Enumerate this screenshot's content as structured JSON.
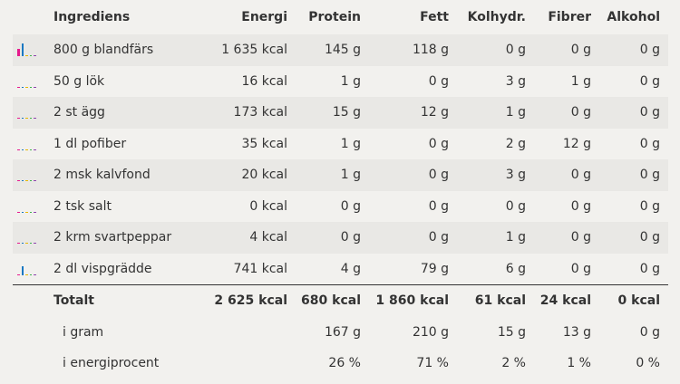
{
  "colors": {
    "protein": "#e61a8d",
    "fat": "#1a78c2",
    "carbs": "#e6b800",
    "fiber": "#3fb34f",
    "alcohol": "#8e44ad"
  },
  "header": {
    "ingredients": "Ingrediens",
    "energy": "Energi",
    "protein": "Protein",
    "fat": "Fett",
    "carbs": "Kolhydr.",
    "fiber": "Fibrer",
    "alcohol": "Alkohol"
  },
  "rows": [
    {
      "name": "800 g blandfärs",
      "energy": "1 635 kcal",
      "protein": "145 g",
      "fat": "118 g",
      "carbs": "0 g",
      "fiber": "0 g",
      "alcohol": "0 g",
      "bars": [
        0.55,
        1.0,
        0,
        0,
        0
      ]
    },
    {
      "name": "50 g lök",
      "energy": "16 kcal",
      "protein": "1 g",
      "fat": "0 g",
      "carbs": "3 g",
      "fiber": "1 g",
      "alcohol": "0 g",
      "bars": [
        0,
        0,
        0,
        0,
        0
      ]
    },
    {
      "name": "2 st ägg",
      "energy": "173 kcal",
      "protein": "15 g",
      "fat": "12 g",
      "carbs": "1 g",
      "fiber": "0 g",
      "alcohol": "0 g",
      "bars": [
        0,
        0,
        0,
        0,
        0
      ]
    },
    {
      "name": "1 dl pofiber",
      "energy": "35 kcal",
      "protein": "1 g",
      "fat": "0 g",
      "carbs": "2 g",
      "fiber": "12 g",
      "alcohol": "0 g",
      "bars": [
        0,
        0,
        0,
        0,
        0
      ]
    },
    {
      "name": "2 msk kalvfond",
      "energy": "20 kcal",
      "protein": "1 g",
      "fat": "0 g",
      "carbs": "3 g",
      "fiber": "0 g",
      "alcohol": "0 g",
      "bars": [
        0,
        0,
        0,
        0,
        0
      ]
    },
    {
      "name": "2 tsk salt",
      "energy": "0 kcal",
      "protein": "0 g",
      "fat": "0 g",
      "carbs": "0 g",
      "fiber": "0 g",
      "alcohol": "0 g",
      "bars": [
        0,
        0,
        0,
        0,
        0
      ]
    },
    {
      "name": "2 krm svartpeppar",
      "energy": "4 kcal",
      "protein": "0 g",
      "fat": "0 g",
      "carbs": "1 g",
      "fiber": "0 g",
      "alcohol": "0 g",
      "bars": [
        0,
        0,
        0,
        0,
        0
      ]
    },
    {
      "name": "2 dl vispgrädde",
      "energy": "741 kcal",
      "protein": "4 g",
      "fat": "79 g",
      "carbs": "6 g",
      "fiber": "0 g",
      "alcohol": "0 g",
      "bars": [
        0,
        0.7,
        0,
        0,
        0
      ]
    }
  ],
  "total": {
    "label": "Totalt",
    "energy": "2 625 kcal",
    "protein": "680 kcal",
    "fat": "1 860 kcal",
    "carbs": "61 kcal",
    "fiber": "24 kcal",
    "alcohol": "0 kcal"
  },
  "grams": {
    "label": "i gram",
    "protein": "167 g",
    "fat": "210 g",
    "carbs": "15 g",
    "fiber": "13 g",
    "alcohol": "0 g"
  },
  "percent": {
    "label": "i energiprocent",
    "protein": "26 %",
    "fat": "71 %",
    "carbs": "2 %",
    "fiber": "1 %",
    "alcohol": "0 %"
  }
}
